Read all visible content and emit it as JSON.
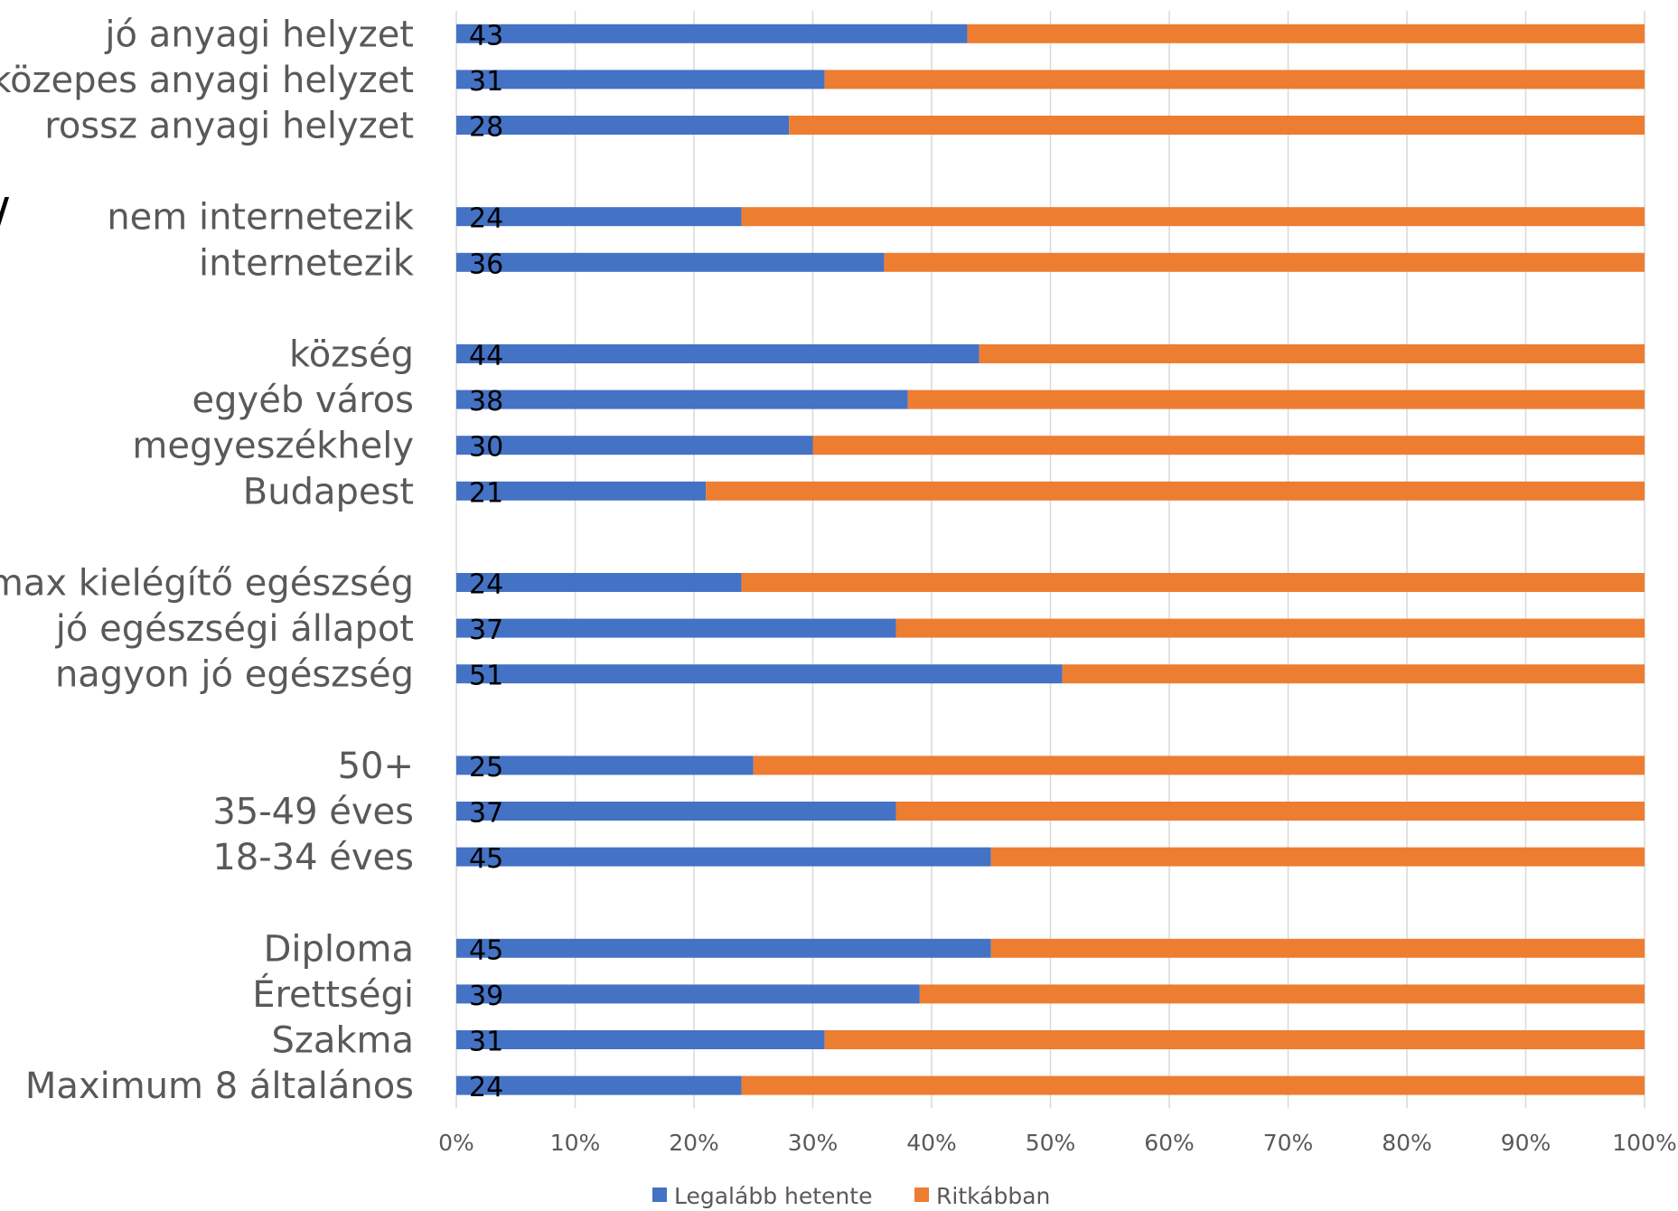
{
  "chart_data": {
    "type": "bar",
    "orientation": "horizontal",
    "stacked": "percent",
    "categories": [
      "jó anyagi helyzet",
      "közepes anyagi helyzet",
      "rossz anyagi helyzet",
      "",
      "nem internetezik",
      "internetezik",
      "",
      "község",
      "egyéb város",
      "megyeszékhely",
      "Budapest",
      "",
      "max kielégítő egészség",
      "jó egészségi állapot",
      "nagyon jó egészség",
      "",
      "50+",
      "35-49 éves",
      "18-34 éves",
      "",
      "Diploma",
      "Érettségi",
      "Szakma",
      "Maximum 8 általános"
    ],
    "series": [
      {
        "name": "Legalább hetente",
        "color": "#4472C4",
        "values": [
          43,
          31,
          28,
          null,
          24,
          36,
          null,
          44,
          38,
          30,
          21,
          null,
          24,
          37,
          51,
          null,
          25,
          37,
          45,
          null,
          45,
          39,
          31,
          24
        ]
      },
      {
        "name": "Ritkábban",
        "color": "#ED7D31",
        "values": [
          57,
          69,
          72,
          null,
          76,
          64,
          null,
          56,
          62,
          70,
          79,
          null,
          76,
          63,
          49,
          null,
          75,
          63,
          55,
          null,
          55,
          61,
          69,
          76
        ]
      }
    ],
    "xlim": [
      0,
      100
    ],
    "x_ticks": [
      "0%",
      "10%",
      "20%",
      "30%",
      "40%",
      "50%",
      "60%",
      "70%",
      "80%",
      "90%",
      "100%"
    ],
    "grid": true,
    "legend_position": "bottom",
    "data_labels": [
      "43",
      "31",
      "28",
      "",
      "24",
      "36",
      "",
      "44",
      "38",
      "30",
      "21",
      "",
      "24",
      "37",
      "51",
      "",
      "25",
      "37",
      "45",
      "",
      "45",
      "39",
      "31",
      "24"
    ],
    "title": "",
    "xlabel": "",
    "ylabel": ""
  },
  "stray_mark": "/"
}
